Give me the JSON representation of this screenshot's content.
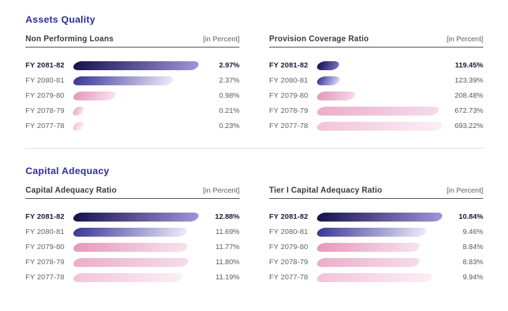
{
  "colors": {
    "section_heading": "#2e2d96",
    "header_rule": "#3e3e46",
    "divider_dotted": "#b9b9b9",
    "label_gray": "#5c5c63",
    "current_year_dark": "#191633"
  },
  "sections": [
    {
      "title": "Assets Quality",
      "charts": [
        {
          "title": "Non Performing Loans",
          "unit": "[in Percent]",
          "rows": [
            {
              "label": "FY 2081-82",
              "value": "2.97%",
              "width_pct": 100,
              "color_from": "#17114f",
              "color_to": "#9e94d8"
            },
            {
              "label": "FY 2080-81",
              "value": "2.37%",
              "width_pct": 79.8,
              "color_from": "#3b3896",
              "color_to": "#eceafa"
            },
            {
              "label": "FY 2079-80",
              "value": "0.98%",
              "width_pct": 33,
              "color_from": "#e697bd",
              "color_to": "#f8e2ee"
            },
            {
              "label": "FY 2078-79",
              "value": "0.21%",
              "width_pct": 7.1,
              "color_from": "#edadc9",
              "color_to": "#f5dcea"
            },
            {
              "label": "FY 2077-78",
              "value": "0.23%",
              "width_pct": 7.7,
              "color_from": "#f1c4d8",
              "color_to": "#fbeef5"
            }
          ]
        },
        {
          "title": "Provision Coverage Ratio",
          "unit": "[in Percent]",
          "rows": [
            {
              "label": "FY 2081-82",
              "value": "119.45%",
              "width_pct": 17.2,
              "color_from": "#17114f",
              "color_to": "#7a6fc0"
            },
            {
              "label": "FY 2080-81",
              "value": "123.39%",
              "width_pct": 17.8,
              "color_from": "#3b3896",
              "color_to": "#dcd9f4"
            },
            {
              "label": "FY 2079-80",
              "value": "208.48%",
              "width_pct": 30.1,
              "color_from": "#e697bd",
              "color_to": "#f6d7e7"
            },
            {
              "label": "FY 2078-79",
              "value": "672.73%",
              "width_pct": 97,
              "color_from": "#edadc9",
              "color_to": "#f5dcea"
            },
            {
              "label": "FY 2077-78",
              "value": "693.22%",
              "width_pct": 100,
              "color_from": "#f1c4d8",
              "color_to": "#fbeef5"
            }
          ]
        }
      ]
    },
    {
      "title": "Capital Adequacy",
      "charts": [
        {
          "title": "Capital Adequacy Ratio",
          "unit": "[in Percent]",
          "rows": [
            {
              "label": "FY 2081-82",
              "value": "12.88%",
              "width_pct": 100,
              "color_from": "#17114f",
              "color_to": "#9e94d8"
            },
            {
              "label": "FY 2080-81",
              "value": "11.69%",
              "width_pct": 90.8,
              "color_from": "#3b3896",
              "color_to": "#eceafa"
            },
            {
              "label": "FY 2079-80",
              "value": "11.77%",
              "width_pct": 91.4,
              "color_from": "#e697bd",
              "color_to": "#f8e2ee"
            },
            {
              "label": "FY 2078-79",
              "value": "11.80%",
              "width_pct": 91.6,
              "color_from": "#edadc9",
              "color_to": "#f5dcea"
            },
            {
              "label": "FY 2077-78",
              "value": "11.19%",
              "width_pct": 86.9,
              "color_from": "#f1c4d8",
              "color_to": "#fbeef5"
            }
          ]
        },
        {
          "title": "Tier I Capital Adequacy Ratio",
          "unit": "[in Percent]",
          "rows": [
            {
              "label": "FY 2081-82",
              "value": "10.84%",
              "width_pct": 100,
              "color_from": "#17114f",
              "color_to": "#9e94d8"
            },
            {
              "label": "FY 2080-81",
              "value": "9.46%",
              "width_pct": 87.3,
              "color_from": "#3b3896",
              "color_to": "#eceafa"
            },
            {
              "label": "FY 2079-80",
              "value": "8.84%",
              "width_pct": 81.5,
              "color_from": "#e697bd",
              "color_to": "#f8e2ee"
            },
            {
              "label": "FY 2078-79",
              "value": "8.83%",
              "width_pct": 81.5,
              "color_from": "#edadc9",
              "color_to": "#f5dcea"
            },
            {
              "label": "FY 2077-78",
              "value": "9.94%",
              "width_pct": 91.7,
              "color_from": "#f1c4d8",
              "color_to": "#fbeef5"
            }
          ]
        }
      ]
    }
  ],
  "chart_data": [
    {
      "type": "bar",
      "section": "Assets Quality",
      "title": "Non Performing Loans",
      "unit": "[in Percent]",
      "orientation": "horizontal",
      "categories": [
        "FY 2081-82",
        "FY 2080-81",
        "FY 2079-80",
        "FY 2078-79",
        "FY 2077-78"
      ],
      "values": [
        2.97,
        2.37,
        0.98,
        0.21,
        0.23
      ],
      "value_labels": [
        "2.97%",
        "2.37%",
        "0.98%",
        "0.21%",
        "0.23%"
      ],
      "xlim": [
        0,
        2.97
      ],
      "grid": false,
      "legend": false
    },
    {
      "type": "bar",
      "section": "Assets Quality",
      "title": "Provision Coverage Ratio",
      "unit": "[in Percent]",
      "orientation": "horizontal",
      "categories": [
        "FY 2081-82",
        "FY 2080-81",
        "FY 2079-80",
        "FY 2078-79",
        "FY 2077-78"
      ],
      "values": [
        119.45,
        123.39,
        208.48,
        672.73,
        693.22
      ],
      "value_labels": [
        "119.45%",
        "123.39%",
        "208.48%",
        "672.73%",
        "693.22%"
      ],
      "xlim": [
        0,
        693.22
      ],
      "grid": false,
      "legend": false
    },
    {
      "type": "bar",
      "section": "Capital Adequacy",
      "title": "Capital Adequacy Ratio",
      "unit": "[in Percent]",
      "orientation": "horizontal",
      "categories": [
        "FY 2081-82",
        "FY 2080-81",
        "FY 2079-80",
        "FY 2078-79",
        "FY 2077-78"
      ],
      "values": [
        12.88,
        11.69,
        11.77,
        11.8,
        11.19
      ],
      "value_labels": [
        "12.88%",
        "11.69%",
        "11.77%",
        "11.80%",
        "11.19%"
      ],
      "xlim": [
        0,
        12.88
      ],
      "grid": false,
      "legend": false
    },
    {
      "type": "bar",
      "section": "Capital Adequacy",
      "title": "Tier I Capital Adequacy Ratio",
      "unit": "[in Percent]",
      "orientation": "horizontal",
      "categories": [
        "FY 2081-82",
        "FY 2080-81",
        "FY 2079-80",
        "FY 2078-79",
        "FY 2077-78"
      ],
      "values": [
        10.84,
        9.46,
        8.84,
        8.83,
        9.94
      ],
      "value_labels": [
        "10.84%",
        "9.46%",
        "8.84%",
        "8.83%",
        "9.94%"
      ],
      "xlim": [
        0,
        10.84
      ],
      "grid": false,
      "legend": false
    }
  ]
}
